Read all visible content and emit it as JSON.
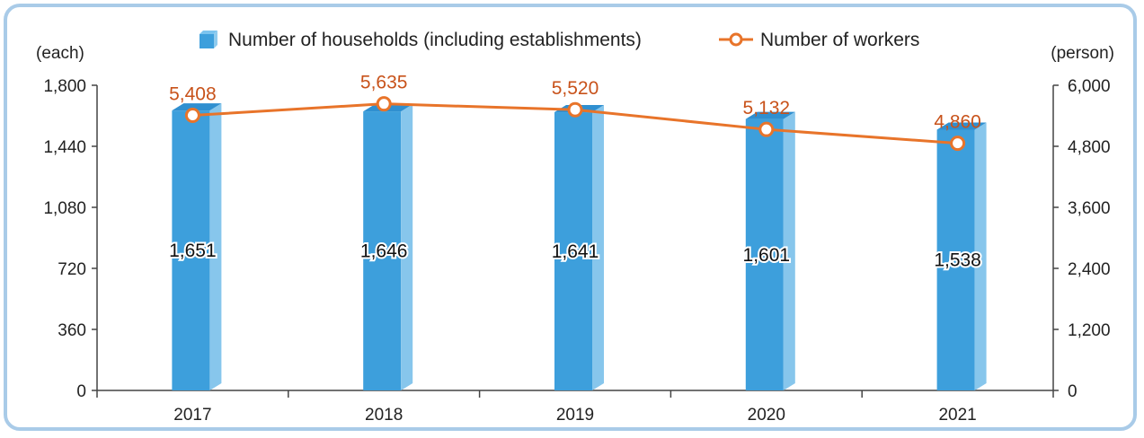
{
  "chart_data": {
    "type": "bar",
    "categories": [
      "2017",
      "2018",
      "2019",
      "2020",
      "2021"
    ],
    "series": [
      {
        "name": "Number of households (including establishments)",
        "type": "bar",
        "axis": "left",
        "values": [
          1651,
          1646,
          1641,
          1601,
          1538
        ],
        "color": "#3d9fdc"
      },
      {
        "name": "Number of workers",
        "type": "line",
        "axis": "right",
        "values": [
          5408,
          5635,
          5520,
          5132,
          4860
        ],
        "color": "#e8742a"
      }
    ],
    "bar_labels": [
      "1,651",
      "1,646",
      "1,641",
      "1,601",
      "1,538"
    ],
    "line_labels": [
      "5,408",
      "5,635",
      "5,520",
      "5,132",
      "4,860"
    ],
    "left_axis": {
      "unit": "(each)",
      "ylim": [
        0,
        1800
      ],
      "ticks": [
        "0",
        "360",
        "720",
        "1,080",
        "1,440",
        "1,800"
      ]
    },
    "right_axis": {
      "unit": "(person)",
      "ylim": [
        0,
        6000
      ],
      "ticks": [
        "0",
        "1,200",
        "2,400",
        "3,600",
        "4,800",
        "6,000"
      ]
    },
    "legend_position": "top-center",
    "grid": false
  }
}
